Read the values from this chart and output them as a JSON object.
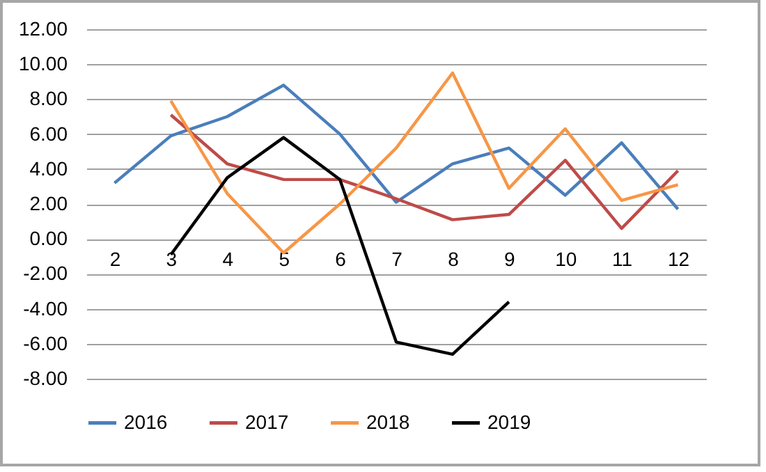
{
  "chart_data": {
    "type": "line",
    "categories": [
      "2",
      "3",
      "4",
      "5",
      "6",
      "7",
      "8",
      "9",
      "10",
      "11",
      "12"
    ],
    "series": [
      {
        "name": "2016",
        "color": "#4a7ebb",
        "values": [
          3.2,
          5.9,
          7.0,
          8.8,
          6.0,
          2.1,
          4.3,
          5.2,
          2.5,
          5.5,
          1.7
        ]
      },
      {
        "name": "2017",
        "color": "#be4b48",
        "values": [
          null,
          7.1,
          4.3,
          3.4,
          3.4,
          2.3,
          1.1,
          1.4,
          4.5,
          0.6,
          3.9
        ]
      },
      {
        "name": "2018",
        "color": "#f79646",
        "values": [
          null,
          7.9,
          2.6,
          -0.8,
          2.0,
          5.2,
          9.5,
          2.9,
          6.3,
          2.2,
          3.1
        ]
      },
      {
        "name": "2019",
        "color": "#000000",
        "values": [
          null,
          -0.9,
          3.5,
          5.8,
          3.4,
          -5.9,
          -6.6,
          -3.6,
          null,
          null,
          null
        ]
      }
    ],
    "ylim": [
      -8,
      12
    ],
    "yticks": [
      {
        "value": -8,
        "label": "-8.00"
      },
      {
        "value": -6,
        "label": "-6.00"
      },
      {
        "value": -4,
        "label": "-4.00"
      },
      {
        "value": -2,
        "label": "-2.00"
      },
      {
        "value": 0,
        "label": "0.00"
      },
      {
        "value": 2,
        "label": "2.00"
      },
      {
        "value": 4,
        "label": "4.00"
      },
      {
        "value": 6,
        "label": "6.00"
      },
      {
        "value": 8,
        "label": "8.00"
      },
      {
        "value": 10,
        "label": "10.00"
      },
      {
        "value": 12,
        "label": "12.00"
      }
    ],
    "grid": "y",
    "legend": "bottom",
    "marker": "none",
    "line_style": "solid"
  }
}
